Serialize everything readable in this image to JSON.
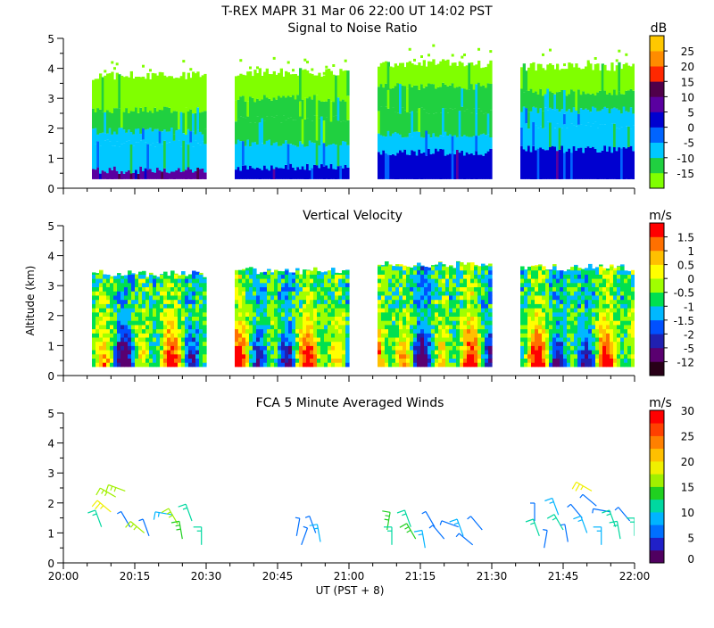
{
  "header": {
    "title": "T-REX   MAPR 31 Mar 06   22:00 UT   14:02   PST"
  },
  "x_axis": {
    "label": "UT  (PST + 8)",
    "range_min": [
      0,
      120
    ],
    "ticks": [
      {
        "min": 0,
        "label": "20:00"
      },
      {
        "min": 15,
        "label": "20:15"
      },
      {
        "min": 30,
        "label": "20:30"
      },
      {
        "min": 45,
        "label": "20:45"
      },
      {
        "min": 60,
        "label": "21:00"
      },
      {
        "min": 75,
        "label": "21:15"
      },
      {
        "min": 90,
        "label": "21:30"
      },
      {
        "min": 105,
        "label": "21:45"
      },
      {
        "min": 120,
        "label": "22:00"
      }
    ]
  },
  "y_axis": {
    "label": "Altitude (km)",
    "ylim": [
      0,
      5
    ],
    "ticks": [
      "0",
      "1",
      "2",
      "3",
      "4",
      "5"
    ]
  },
  "chart_data": [
    {
      "type": "heatmap",
      "title": "Signal to Noise Ratio",
      "xlabel": "UT  (PST + 8)",
      "ylabel": "Altitude (km)",
      "ylim": [
        0,
        5
      ],
      "segments_min": [
        [
          6,
          30
        ],
        [
          36,
          60
        ],
        [
          66,
          90
        ],
        [
          96,
          120
        ]
      ],
      "colorbar": {
        "unit": "dB",
        "colors": [
          "#80ff00",
          "#20d040",
          "#00c8ff",
          "#0064ff",
          "#0000d0",
          "#5a00a0",
          "#50004a",
          "#ff2800",
          "#ff8c00",
          "#ffc800"
        ],
        "labels": [
          "-15",
          "-10",
          "-5",
          "0",
          "5",
          "10",
          "15",
          "20",
          "25"
        ]
      },
      "profiles": [
        {
          "segment": 0,
          "layers": [
            {
              "top_km": 0.6,
              "level": 5
            },
            {
              "top_km": 1.5,
              "level": 2
            },
            {
              "top_km": 1.9,
              "level": 2
            },
            {
              "top_km": 2.6,
              "level": 1
            },
            {
              "top_km": 3.7,
              "level": 0
            }
          ]
        },
        {
          "segment": 1,
          "layers": [
            {
              "top_km": 0.7,
              "level": 4
            },
            {
              "top_km": 1.5,
              "level": 2
            },
            {
              "top_km": 2.3,
              "level": 1
            },
            {
              "top_km": 3.0,
              "level": 1
            },
            {
              "top_km": 3.8,
              "level": 0
            }
          ]
        },
        {
          "segment": 2,
          "layers": [
            {
              "top_km": 1.2,
              "level": 4
            },
            {
              "top_km": 1.8,
              "level": 2
            },
            {
              "top_km": 2.6,
              "level": 1
            },
            {
              "top_km": 3.4,
              "level": 1
            },
            {
              "top_km": 4.1,
              "level": 0
            }
          ]
        },
        {
          "segment": 3,
          "layers": [
            {
              "top_km": 1.3,
              "level": 4
            },
            {
              "top_km": 2.1,
              "level": 2
            },
            {
              "top_km": 2.6,
              "level": 2
            },
            {
              "top_km": 3.2,
              "level": 1
            },
            {
              "top_km": 4.0,
              "level": 0
            }
          ]
        }
      ]
    },
    {
      "type": "heatmap",
      "title": "Vertical Velocity",
      "xlabel": "UT  (PST + 8)",
      "ylabel": "Altitude (km)",
      "ylim": [
        0,
        5
      ],
      "segments_min": [
        [
          6,
          30
        ],
        [
          36,
          60
        ],
        [
          66,
          90
        ],
        [
          96,
          120
        ]
      ],
      "colorbar": {
        "unit": "m/s",
        "colors": [
          "#280018",
          "#5a0070",
          "#2020b0",
          "#0050ff",
          "#00b8ff",
          "#00e050",
          "#a0ff00",
          "#ffff00",
          "#ffc000",
          "#ff7000",
          "#ff0000"
        ],
        "labels": [
          "-12",
          "-5",
          "-2",
          "-1.5",
          "-1",
          "-0.5",
          "0",
          "0.5",
          "1",
          "1.5"
        ]
      },
      "profiles": [
        {
          "segment": 0,
          "top_km": 3.4
        },
        {
          "segment": 1,
          "top_km": 3.5
        },
        {
          "segment": 2,
          "top_km": 3.7
        },
        {
          "segment": 3,
          "top_km": 3.6
        }
      ]
    },
    {
      "type": "scatter",
      "title": "FCA 5 Minute Averaged Winds",
      "xlabel": "UT  (PST + 8)",
      "ylabel": "Altitude (km)",
      "ylim": [
        0,
        5
      ],
      "colorbar": {
        "unit": "m/s",
        "colors": [
          "#500060",
          "#2020c8",
          "#0070ff",
          "#00b4ff",
          "#00d8a0",
          "#20d020",
          "#a0f000",
          "#f0f000",
          "#ffc000",
          "#ff8000",
          "#ff4000",
          "#ff0000"
        ],
        "labels": [
          "0",
          "5",
          "10",
          "15",
          "20",
          "25",
          "30"
        ]
      },
      "barbs": [
        {
          "t": 8,
          "alt": 1.2,
          "speed": 12,
          "dir": 200
        },
        {
          "t": 10,
          "alt": 1.7,
          "speed": 18,
          "dir": 230
        },
        {
          "t": 11,
          "alt": 2.2,
          "speed": 16,
          "dir": 240
        },
        {
          "t": 13,
          "alt": 2.4,
          "speed": 17,
          "dir": 250
        },
        {
          "t": 14,
          "alt": 1.2,
          "speed": 7,
          "dir": 210
        },
        {
          "t": 17,
          "alt": 1.0,
          "speed": 17,
          "dir": 230
        },
        {
          "t": 18,
          "alt": 0.9,
          "speed": 6,
          "dir": 200
        },
        {
          "t": 23,
          "alt": 1.6,
          "speed": 8,
          "dir": 260
        },
        {
          "t": 24,
          "alt": 1.3,
          "speed": 15,
          "dir": 210
        },
        {
          "t": 25,
          "alt": 0.8,
          "speed": 13,
          "dir": 190
        },
        {
          "t": 27,
          "alt": 1.4,
          "speed": 11,
          "dir": 200
        },
        {
          "t": 29,
          "alt": 0.6,
          "speed": 12,
          "dir": 180
        },
        {
          "t": 49,
          "alt": 0.9,
          "speed": 5,
          "dir": 170
        },
        {
          "t": 50,
          "alt": 0.6,
          "speed": 6,
          "dir": 160
        },
        {
          "t": 53,
          "alt": 1.0,
          "speed": 6,
          "dir": 200
        },
        {
          "t": 54,
          "alt": 0.7,
          "speed": 8,
          "dir": 190
        },
        {
          "t": 68,
          "alt": 1.1,
          "speed": 13,
          "dir": 170
        },
        {
          "t": 69,
          "alt": 0.6,
          "speed": 11,
          "dir": 180
        },
        {
          "t": 73,
          "alt": 1.2,
          "speed": 12,
          "dir": 200
        },
        {
          "t": 74,
          "alt": 0.8,
          "speed": 14,
          "dir": 210
        },
        {
          "t": 76,
          "alt": 0.5,
          "speed": 9,
          "dir": 190
        },
        {
          "t": 78,
          "alt": 1.2,
          "speed": 5,
          "dir": 210
        },
        {
          "t": 80,
          "alt": 0.8,
          "speed": 6,
          "dir": 220
        },
        {
          "t": 83,
          "alt": 1.2,
          "speed": 5,
          "dir": 250
        },
        {
          "t": 84,
          "alt": 0.9,
          "speed": 9,
          "dir": 200
        },
        {
          "t": 86,
          "alt": 0.6,
          "speed": 6,
          "dir": 230
        },
        {
          "t": 88,
          "alt": 1.1,
          "speed": 5,
          "dir": 220
        },
        {
          "t": 99,
          "alt": 1.4,
          "speed": 6,
          "dir": 180
        },
        {
          "t": 100,
          "alt": 0.9,
          "speed": 10,
          "dir": 200
        },
        {
          "t": 101,
          "alt": 0.5,
          "speed": 5,
          "dir": 170
        },
        {
          "t": 104,
          "alt": 1.6,
          "speed": 9,
          "dir": 200
        },
        {
          "t": 105,
          "alt": 1.1,
          "speed": 10,
          "dir": 210
        },
        {
          "t": 106,
          "alt": 0.7,
          "speed": 7,
          "dir": 190
        },
        {
          "t": 109,
          "alt": 1.5,
          "speed": 6,
          "dir": 220
        },
        {
          "t": 110,
          "alt": 1.0,
          "speed": 9,
          "dir": 200
        },
        {
          "t": 111,
          "alt": 2.4,
          "speed": 18,
          "dir": 240
        },
        {
          "t": 112,
          "alt": 1.9,
          "speed": 5,
          "dir": 230
        },
        {
          "t": 113,
          "alt": 0.6,
          "speed": 8,
          "dir": 180
        },
        {
          "t": 115,
          "alt": 1.7,
          "speed": 6,
          "dir": 260
        },
        {
          "t": 116,
          "alt": 1.2,
          "speed": 10,
          "dir": 200
        },
        {
          "t": 117,
          "alt": 0.8,
          "speed": 12,
          "dir": 190
        },
        {
          "t": 119,
          "alt": 1.4,
          "speed": 6,
          "dir": 220
        },
        {
          "t": 120,
          "alt": 0.9,
          "speed": 12,
          "dir": 180
        }
      ]
    }
  ]
}
